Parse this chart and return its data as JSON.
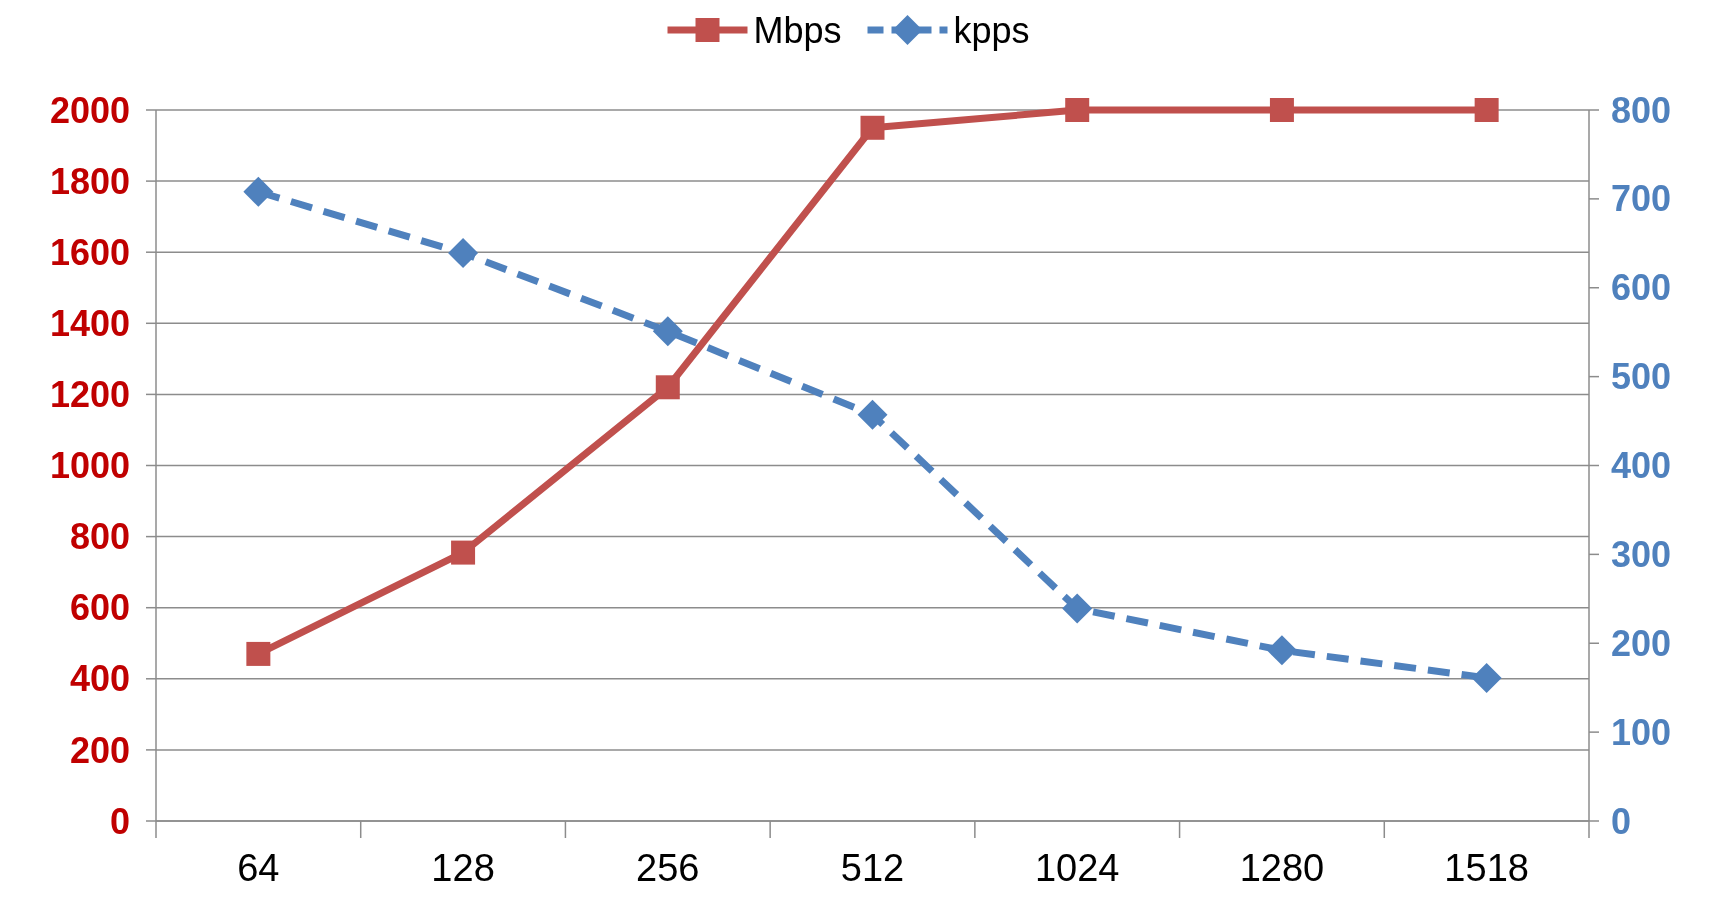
{
  "chart_data": {
    "type": "line",
    "categories": [
      "64",
      "128",
      "256",
      "512",
      "1024",
      "1280",
      "1518"
    ],
    "series": [
      {
        "name": "Mbps",
        "color": "#c0504d",
        "values": [
          470,
          755,
          1220,
          1950,
          2000,
          2000,
          2000
        ],
        "marker": "square",
        "line_style": "solid"
      },
      {
        "name": "kpps",
        "color": "#4f81bd",
        "values": [
          708,
          639,
          551,
          457,
          239,
          192,
          161
        ],
        "marker": "diamond",
        "line_style": "dashed",
        "axis": "y2"
      }
    ],
    "ylim": [
      0,
      2000
    ],
    "yticks": [
      0,
      200,
      400,
      600,
      800,
      1000,
      1200,
      1400,
      1600,
      1800,
      2000
    ],
    "y2lim": [
      0,
      800
    ],
    "y2ticks": [
      0,
      100,
      200,
      300,
      400,
      500,
      600,
      700,
      800
    ],
    "grid": "y",
    "legend": "top"
  }
}
